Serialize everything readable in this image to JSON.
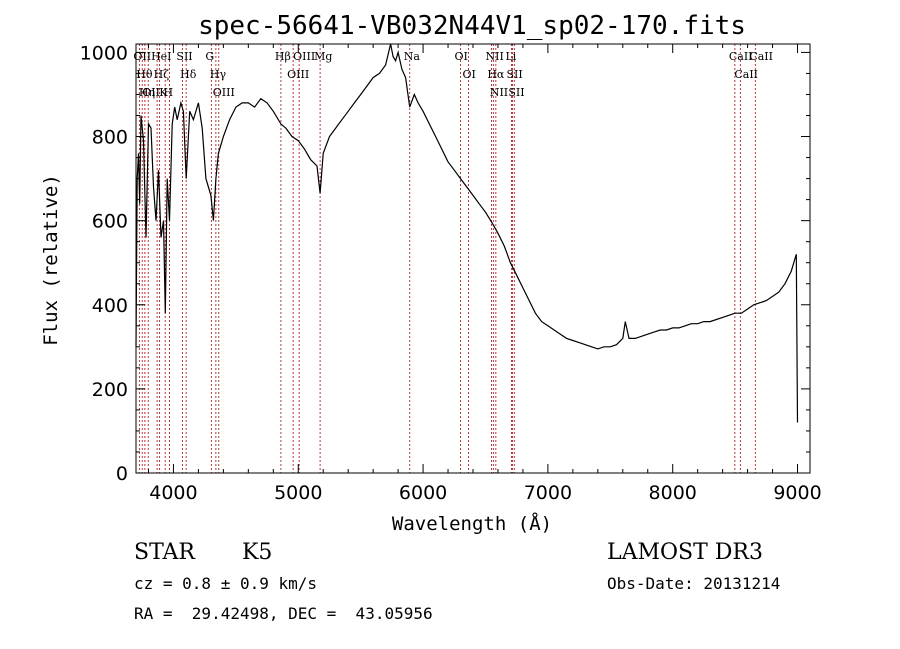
{
  "chart_data": {
    "type": "line",
    "title": "spec-56641-VB032N44V1_sp02-170.fits",
    "xlabel": "Wavelength (Å)",
    "ylabel": "Flux (relative)",
    "xlim": [
      3700,
      9100
    ],
    "ylim": [
      0,
      1020
    ],
    "xticks": [
      4000,
      5000,
      6000,
      7000,
      8000,
      9000
    ],
    "yticks": [
      0,
      200,
      400,
      600,
      800,
      1000
    ],
    "series": [
      {
        "name": "flux",
        "x": [
          3700,
          3710,
          3720,
          3730,
          3740,
          3760,
          3780,
          3800,
          3820,
          3840,
          3860,
          3880,
          3900,
          3920,
          3935,
          3950,
          3968,
          3990,
          4010,
          4030,
          4060,
          4080,
          4102,
          4130,
          4160,
          4200,
          4230,
          4260,
          4300,
          4320,
          4340,
          4360,
          4400,
          4450,
          4500,
          4550,
          4600,
          4650,
          4700,
          4750,
          4800,
          4861,
          4900,
          4950,
          5000,
          5050,
          5100,
          5150,
          5175,
          5200,
          5250,
          5300,
          5350,
          5400,
          5450,
          5500,
          5550,
          5600,
          5650,
          5700,
          5740,
          5760,
          5780,
          5800,
          5830,
          5860,
          5893,
          5930,
          5960,
          6000,
          6050,
          6100,
          6150,
          6200,
          6250,
          6300,
          6350,
          6400,
          6450,
          6500,
          6563,
          6600,
          6650,
          6700,
          6750,
          6800,
          6850,
          6900,
          6950,
          7000,
          7050,
          7100,
          7150,
          7200,
          7250,
          7300,
          7350,
          7400,
          7450,
          7500,
          7550,
          7600,
          7620,
          7650,
          7700,
          7750,
          7800,
          7850,
          7900,
          7950,
          8000,
          8050,
          8100,
          8150,
          8200,
          8250,
          8300,
          8350,
          8400,
          8450,
          8500,
          8550,
          8600,
          8650,
          8700,
          8750,
          8800,
          8850,
          8900,
          8950,
          8980,
          8990,
          9000
        ],
        "y": [
          300,
          700,
          760,
          640,
          850,
          790,
          560,
          830,
          820,
          680,
          600,
          720,
          560,
          600,
          380,
          700,
          600,
          830,
          870,
          840,
          880,
          860,
          700,
          860,
          840,
          880,
          820,
          700,
          660,
          600,
          700,
          760,
          800,
          840,
          870,
          880,
          880,
          870,
          890,
          880,
          860,
          830,
          820,
          800,
          790,
          770,
          745,
          730,
          665,
          760,
          800,
          820,
          840,
          860,
          880,
          900,
          920,
          940,
          950,
          970,
          1020,
          990,
          980,
          1000,
          960,
          940,
          870,
          900,
          880,
          860,
          830,
          800,
          770,
          740,
          720,
          700,
          680,
          660,
          640,
          620,
          590,
          570,
          540,
          500,
          470,
          440,
          410,
          380,
          360,
          350,
          340,
          330,
          320,
          315,
          310,
          305,
          300,
          295,
          300,
          300,
          305,
          320,
          360,
          320,
          320,
          325,
          330,
          335,
          340,
          340,
          345,
          345,
          350,
          355,
          355,
          360,
          360,
          365,
          370,
          375,
          380,
          380,
          390,
          400,
          405,
          410,
          420,
          430,
          450,
          480,
          510,
          520,
          120
        ]
      }
    ],
    "lines": [
      {
        "wl": 3727,
        "label": "OII"
      },
      {
        "wl": 3750,
        "label": "Hθ"
      },
      {
        "wl": 3771,
        "label": "Hη"
      },
      {
        "wl": 3798,
        "label": "OII"
      },
      {
        "wl": 3869,
        "label": "HeI"
      },
      {
        "wl": 3889,
        "label": "Hζ"
      },
      {
        "wl": 3934,
        "label": "K"
      },
      {
        "wl": 3968,
        "label": "H"
      },
      {
        "wl": 4072,
        "label": "SII"
      },
      {
        "wl": 4102,
        "label": "Hδ"
      },
      {
        "wl": 4304,
        "label": "G"
      },
      {
        "wl": 4340,
        "label": "Hγ"
      },
      {
        "wl": 4363,
        "label": "OIII"
      },
      {
        "wl": 4861,
        "label": "Hβ"
      },
      {
        "wl": 4959,
        "label": "OIII"
      },
      {
        "wl": 5007,
        "label": "OIII"
      },
      {
        "wl": 5175,
        "label": "Mg"
      },
      {
        "wl": 5893,
        "label": "Na"
      },
      {
        "wl": 6300,
        "label": "OI"
      },
      {
        "wl": 6364,
        "label": "OI"
      },
      {
        "wl": 6548,
        "label": "NII"
      },
      {
        "wl": 6563,
        "label": "Hα"
      },
      {
        "wl": 6583,
        "label": "NII"
      },
      {
        "wl": 6708,
        "label": "Li"
      },
      {
        "wl": 6716,
        "label": "SII"
      },
      {
        "wl": 6731,
        "label": "SII"
      },
      {
        "wl": 8498,
        "label": "CaII"
      },
      {
        "wl": 8542,
        "label": "CaII"
      },
      {
        "wl": 8662,
        "label": "CaII"
      }
    ]
  },
  "info": {
    "object_class": "STAR",
    "subclass": "K5",
    "survey": "LAMOST DR3",
    "redshift": "cz = 0.8 ± 0.9 km/s",
    "obs_date": "Obs-Date: 20131214",
    "coords": "RA =  29.42498, DEC =  43.05956"
  }
}
